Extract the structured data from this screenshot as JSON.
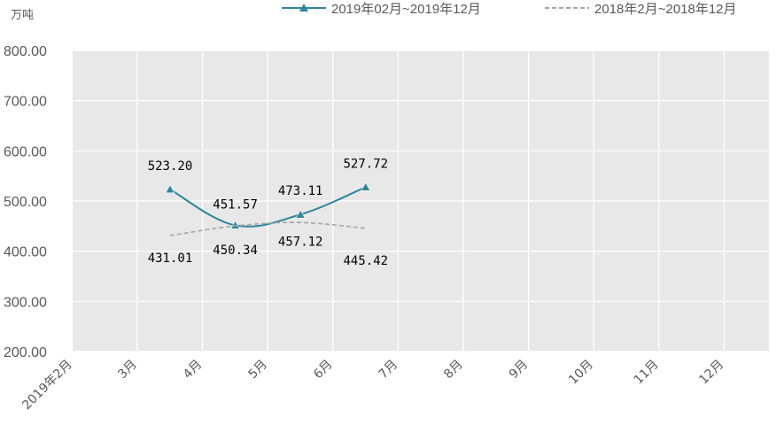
{
  "chart_data": {
    "type": "line",
    "unit_label": "万吨",
    "categories": [
      "2019年2月",
      "3月",
      "4月",
      "5月",
      "6月",
      "7月",
      "8月",
      "9月",
      "10月",
      "11月",
      "12月"
    ],
    "y_ticks": [
      "800.00",
      "700.00",
      "600.00",
      "500.00",
      "400.00",
      "300.00",
      "200.00"
    ],
    "ylim": [
      200,
      800
    ],
    "grid": true,
    "legend_position": "top-right",
    "series": [
      {
        "name": "2019年02月~2019年12月",
        "color": "#31849b",
        "style": "solid",
        "marker": "triangle",
        "values": [
          null,
          523.2,
          451.57,
          473.11,
          527.72,
          null,
          null,
          null,
          null,
          null,
          null
        ],
        "labels": [
          null,
          "523.20",
          "451.57",
          "473.11",
          "527.72",
          null,
          null,
          null,
          null,
          null,
          null
        ]
      },
      {
        "name": "2018年2月~2018年12月",
        "color": "#a6a6a6",
        "style": "dashed",
        "marker": "none",
        "values": [
          null,
          431.01,
          450.34,
          457.12,
          445.42,
          null,
          null,
          null,
          null,
          null,
          null
        ],
        "labels": [
          null,
          "431.01",
          "450.34",
          "457.12",
          "445.42",
          null,
          null,
          null,
          null,
          null,
          null
        ]
      }
    ]
  }
}
